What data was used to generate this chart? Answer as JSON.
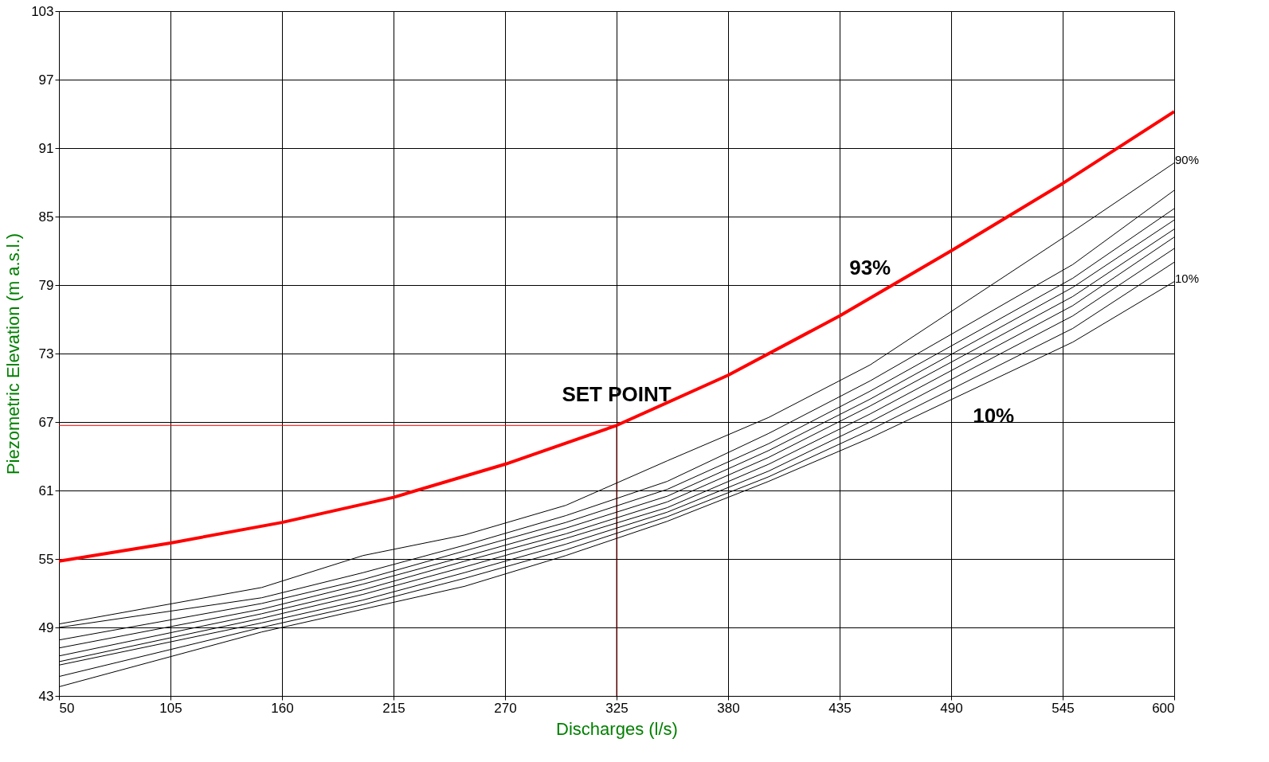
{
  "chart_data": {
    "type": "line",
    "xlabel": "Discharges (l/s)",
    "ylabel": "Piezometric Elevation (m a.s.l.)",
    "xlim": [
      50,
      600
    ],
    "xticks": [
      50,
      105,
      160,
      215,
      270,
      325,
      380,
      435,
      490,
      545,
      600
    ],
    "ylim": [
      43,
      103
    ],
    "yticks": [
      43,
      49,
      55,
      61,
      67,
      73,
      79,
      85,
      91,
      97,
      103
    ],
    "grid": true,
    "marker": "none",
    "line_style": "solid",
    "annotations": [
      {
        "text": "SET POINT",
        "x": 325,
        "y": 66.7
      },
      {
        "text": "93%",
        "x": 450,
        "y": 77.8
      },
      "10%"
    ],
    "series": [
      {
        "color": "#ff0000",
        "x": [
          50,
          105,
          160,
          215,
          270,
          325,
          380,
          435,
          490,
          545,
          600
        ],
        "values": [
          54.8,
          56.4,
          58.2,
          60.4,
          63.3,
          66.7,
          71.1,
          76.3,
          82.0,
          87.9,
          94.2
        ]
      },
      {
        "color": "#ff0000",
        "x": [
          50,
          325
        ],
        "values": [
          66.7,
          66.7
        ]
      },
      {
        "color": "#800000",
        "x": [
          325,
          325
        ],
        "values": [
          66.7,
          43
        ]
      },
      {
        "name": "90%",
        "color": "#000000",
        "x": [
          50,
          150,
          200,
          250,
          300,
          350,
          400,
          450,
          550,
          600
        ],
        "values": [
          49.3,
          52.5,
          55.3,
          57.1,
          59.7,
          63.6,
          67.4,
          72.0,
          83.7,
          89.7
        ]
      },
      {
        "color": "#000000",
        "x": [
          50,
          150,
          200,
          250,
          300,
          350,
          400,
          450,
          550,
          600
        ],
        "values": [
          49.0,
          51.6,
          53.8,
          56.2,
          58.8,
          61.8,
          66.0,
          70.6,
          80.8,
          87.3
        ]
      },
      {
        "color": "#000000",
        "x": [
          50,
          150,
          200,
          250,
          300,
          350,
          400,
          450,
          550,
          600
        ],
        "values": [
          47.9,
          51.1,
          53.2,
          55.7,
          58.2,
          61.1,
          65.1,
          69.7,
          79.6,
          85.7
        ]
      },
      {
        "color": "#000000",
        "x": [
          50,
          150,
          200,
          250,
          300,
          350,
          400,
          450,
          550,
          600
        ],
        "values": [
          47.2,
          50.6,
          52.8,
          55.2,
          57.7,
          60.5,
          64.5,
          69.0,
          78.8,
          84.7
        ]
      },
      {
        "color": "#000000",
        "x": [
          50,
          150,
          200,
          250,
          300,
          350,
          400,
          450,
          550,
          600
        ],
        "values": [
          46.5,
          50.2,
          52.3,
          54.8,
          57.2,
          60.0,
          63.9,
          68.4,
          78.0,
          83.9
        ]
      },
      {
        "color": "#000000",
        "x": [
          50,
          150,
          200,
          250,
          300,
          350,
          400,
          450,
          550,
          600
        ],
        "values": [
          46.0,
          49.8,
          51.9,
          54.3,
          56.8,
          59.5,
          63.3,
          67.7,
          77.2,
          83.2
        ]
      },
      {
        "color": "#000000",
        "x": [
          50,
          150,
          200,
          250,
          300,
          350,
          400,
          450,
          550,
          600
        ],
        "values": [
          45.7,
          49.4,
          51.4,
          53.8,
          56.3,
          59.1,
          62.7,
          67.0,
          76.3,
          82.2
        ]
      },
      {
        "color": "#000000",
        "x": [
          50,
          150,
          200,
          250,
          300,
          350,
          400,
          450,
          550,
          600
        ],
        "values": [
          44.7,
          49.0,
          51.0,
          53.3,
          55.8,
          58.7,
          62.2,
          66.3,
          75.2,
          81.0
        ]
      },
      {
        "name": "10%",
        "color": "#000000",
        "x": [
          50,
          150,
          200,
          250,
          300,
          350,
          400,
          450,
          550,
          600
        ],
        "values": [
          43.8,
          48.6,
          50.6,
          52.6,
          55.3,
          58.3,
          61.8,
          65.6,
          74.0,
          79.3
        ]
      }
    ]
  }
}
